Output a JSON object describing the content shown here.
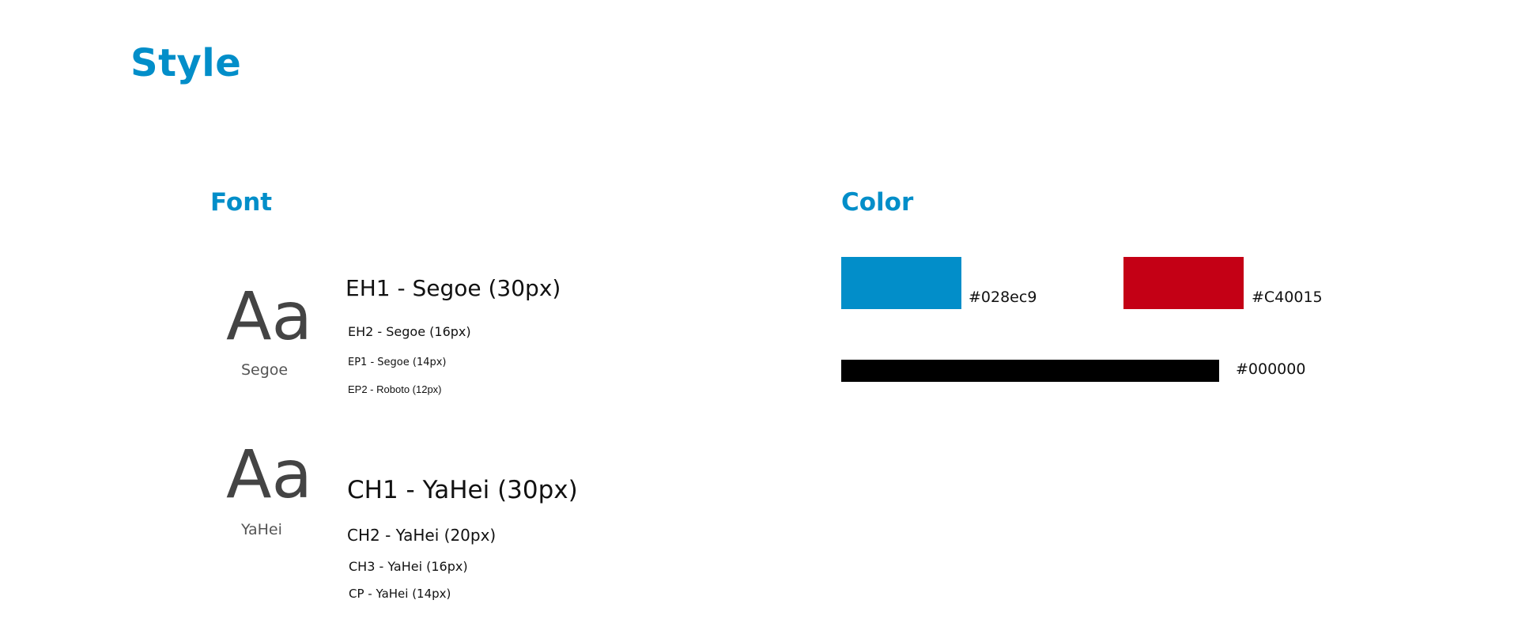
{
  "page": {
    "title": "Style"
  },
  "font_section": {
    "title": "Font",
    "families": [
      {
        "sample": "Aa",
        "name": "Segoe",
        "styles": [
          "EH1 - Segoe (30px)",
          "EH2 - Segoe (16px)",
          "EP1 - Segoe (14px)",
          "EP2 - Roboto (12px)"
        ]
      },
      {
        "sample": "Aa",
        "name": "YaHei",
        "styles": [
          "CH1 - YaHei (30px)",
          "CH2 - YaHei (20px)",
          "CH3 - YaHei (16px)",
          "CP - YaHei (14px)"
        ]
      }
    ]
  },
  "color_section": {
    "title": "Color",
    "colors": [
      {
        "hex": "#028ec9",
        "label": "#028ec9"
      },
      {
        "hex": "#C40015",
        "label": "#C40015"
      },
      {
        "hex": "#000000",
        "label": "#000000"
      }
    ]
  }
}
